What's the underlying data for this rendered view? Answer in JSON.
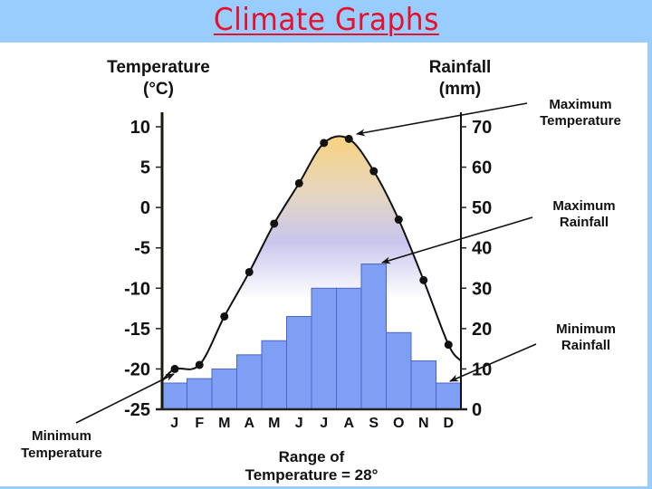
{
  "page": {
    "title": "Climate Graphs",
    "colors": {
      "band": "#99ccff",
      "title": "#e8102a",
      "bar_fill": "#7f9ff4",
      "bar_edge": "#4a67c4",
      "gradient_top": "#f7d27e",
      "gradient_mid": "#c9c6ee"
    }
  },
  "chart_data": {
    "type": "bar+line",
    "title": "Climate Graphs",
    "categories": [
      "J",
      "F",
      "M",
      "A",
      "M",
      "J",
      "J",
      "A",
      "S",
      "O",
      "N",
      "D"
    ],
    "series": [
      {
        "name": "Rainfall (mm)",
        "type": "bar",
        "axis": "right",
        "values": [
          6.5,
          7.6,
          10,
          13.5,
          17,
          23,
          30,
          30,
          36,
          19,
          12,
          6.5
        ]
      },
      {
        "name": "Temperature (°C)",
        "type": "line",
        "axis": "left",
        "values": [
          -20,
          -19.5,
          -13.5,
          -8,
          -2,
          3,
          8,
          8.5,
          4.5,
          -1.5,
          -9,
          -17
        ]
      }
    ],
    "left_axis": {
      "label_line1": "Temperature",
      "label_line2": "(°C)",
      "ticks": [
        "10",
        "5",
        "0",
        "-5",
        "-10",
        "-15",
        "-20",
        "-25"
      ],
      "range": [
        -25,
        10
      ]
    },
    "right_axis": {
      "label_line1": "Rainfall",
      "label_line2": "(mm)",
      "ticks": [
        "70",
        "60",
        "50",
        "40",
        "30",
        "20",
        "10",
        "0"
      ],
      "range": [
        0,
        70
      ]
    },
    "annotations": [
      {
        "line1": "Maximum",
        "line2": "Temperature"
      },
      {
        "line1": "Maximum",
        "line2": "Rainfall"
      },
      {
        "line1": "Minimum",
        "line2": "Rainfall"
      },
      {
        "line1": "Minimum",
        "line2": "Temperature"
      }
    ],
    "footer": {
      "line1": "Range of",
      "line2": "Temperature = 28°"
    }
  }
}
